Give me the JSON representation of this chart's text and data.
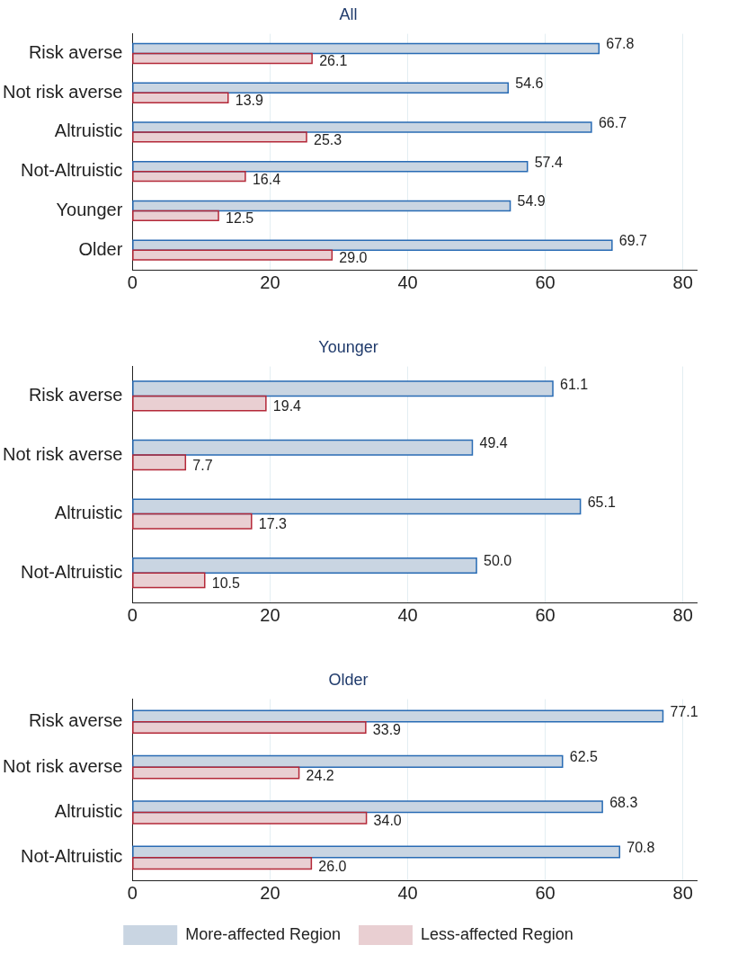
{
  "chart_data": [
    {
      "type": "bar",
      "orientation": "horizontal",
      "title": "All",
      "categories": [
        "Risk averse",
        "Not risk averse",
        "Altruistic",
        "Not-Altruistic",
        "Younger",
        "Older"
      ],
      "xlim": [
        0,
        82
      ],
      "xticks": [
        0,
        20,
        40,
        60,
        80
      ],
      "grid": "x",
      "legend": false,
      "series": [
        {
          "color": "#c9d5e2",
          "values": [
            67.8,
            54.6,
            66.7,
            57.4,
            54.9,
            69.7
          ],
          "value_labels": [
            "67.8",
            "54.6",
            "66.7",
            "57.4",
            "54.9",
            "69.7"
          ]
        },
        {
          "color": "#e9cfd2",
          "values": [
            26.1,
            13.9,
            25.3,
            16.4,
            12.5,
            29.0
          ],
          "value_labels": [
            "26.1",
            "13.9",
            "25.3",
            "16.4",
            "12.5",
            "29.0"
          ]
        }
      ]
    },
    {
      "type": "bar",
      "orientation": "horizontal",
      "title": "Younger",
      "categories": [
        "Risk averse",
        "Not risk averse",
        "Altruistic",
        "Not-Altruistic"
      ],
      "xlim": [
        0,
        82
      ],
      "xticks": [
        0,
        20,
        40,
        60,
        80
      ],
      "grid": "x",
      "legend": false,
      "series": [
        {
          "color": "#c9d5e2",
          "values": [
            61.1,
            49.4,
            65.1,
            50.0
          ],
          "value_labels": [
            "61.1",
            "49.4",
            "65.1",
            "50.0"
          ]
        },
        {
          "color": "#e9cfd2",
          "values": [
            19.4,
            7.7,
            17.3,
            10.5
          ],
          "value_labels": [
            "19.4",
            "7.7",
            "17.3",
            "10.5"
          ]
        }
      ]
    },
    {
      "type": "bar",
      "orientation": "horizontal",
      "title": "Older",
      "categories": [
        "Risk averse",
        "Not risk averse",
        "Altruistic",
        "Not-Altruistic"
      ],
      "xlim": [
        0,
        82
      ],
      "xticks": [
        0,
        20,
        40,
        60,
        80
      ],
      "grid": "x",
      "legend": "bottom",
      "series": [
        {
          "name": "More-affected Region",
          "color": "#c9d5e2",
          "values": [
            77.1,
            62.5,
            68.3,
            70.8
          ],
          "value_labels": [
            "77.1",
            "62.5",
            "68.3",
            "70.8"
          ]
        },
        {
          "name": "Less-affected Region",
          "color": "#e9cfd2",
          "values": [
            33.9,
            24.2,
            34.0,
            26.0
          ],
          "value_labels": [
            "33.9",
            "24.2",
            "34.0",
            "26.0"
          ]
        }
      ]
    }
  ]
}
